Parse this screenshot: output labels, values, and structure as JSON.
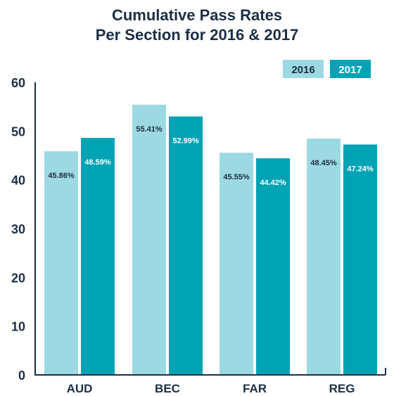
{
  "chart_data": {
    "type": "bar",
    "title_lines": [
      "Cumulative Pass Rates",
      "Per Section for 2016 & 2017"
    ],
    "categories": [
      "AUD",
      "BEC",
      "FAR",
      "REG"
    ],
    "series": [
      {
        "name": "2016",
        "values": [
          45.86,
          55.41,
          45.55,
          48.45
        ],
        "labels": [
          "45.86%",
          "55.41%",
          "45.55%",
          "48.45%"
        ],
        "color": "#9dd9e3",
        "label_color": "#1b2e44"
      },
      {
        "name": "2017",
        "values": [
          48.59,
          52.99,
          44.42,
          47.24
        ],
        "labels": [
          "48.59%",
          "52.99%",
          "44.42%",
          "47.24%"
        ],
        "color": "#00a3b4",
        "label_color": "#ffffff"
      }
    ],
    "ylim": [
      0,
      60
    ],
    "yticks": [
      0,
      10,
      20,
      30,
      40,
      50,
      60
    ],
    "xlabel": "",
    "ylabel": "",
    "grid": false,
    "legend_position": "top-right",
    "axis_color": "#1b2e44"
  }
}
